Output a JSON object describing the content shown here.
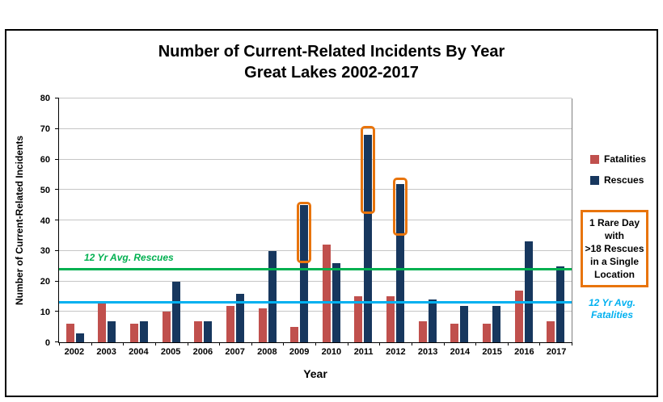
{
  "title": {
    "line1": "Number of Current-Related Incidents By Year",
    "line2": "Great Lakes 2002-2017"
  },
  "annotations": {
    "avg_rescues": "12 Yr Avg. Rescues",
    "avg_fatalities": "12 Yr Avg.\nFatalities",
    "rare_day": "1 Rare Day\nwith\n>18 Rescues\nin a Single\nLocation"
  },
  "chart_data": {
    "type": "bar",
    "title": "Number of Current-Related Incidents By Year Great Lakes 2002-2017",
    "xlabel": "Year",
    "ylabel": "Number of Current-Related Incidents",
    "ylim": [
      0,
      80
    ],
    "ytick_step": 10,
    "grid": true,
    "legend_position": "right",
    "categories": [
      "2002",
      "2003",
      "2004",
      "2005",
      "2006",
      "2007",
      "2008",
      "2009",
      "2010",
      "2011",
      "2012",
      "2013",
      "2014",
      "2015",
      "2016",
      "2017"
    ],
    "series": [
      {
        "name": "Fatalities",
        "color": "#C0504D",
        "values": [
          6,
          13,
          6,
          10,
          7,
          12,
          11,
          5,
          32,
          15,
          15,
          7,
          6,
          6,
          17,
          7
        ]
      },
      {
        "name": "Rescues",
        "color": "#17375E",
        "values": [
          3,
          7,
          7,
          20,
          7,
          16,
          30,
          45,
          26,
          68,
          52,
          14,
          12,
          12,
          33,
          25
        ]
      }
    ],
    "reference_lines": [
      {
        "label": "12 Yr Avg. Rescues",
        "value": 24,
        "color": "#00B050"
      },
      {
        "label": "12 Yr Avg. Fatalities",
        "value": 13,
        "color": "#00B0F0"
      }
    ],
    "highlights": [
      {
        "year": "2009",
        "from": 26,
        "to": 46
      },
      {
        "year": "2011",
        "from": 42,
        "to": 71
      },
      {
        "year": "2012",
        "from": 35,
        "to": 54
      }
    ],
    "highlight_color": "#E8740C"
  }
}
